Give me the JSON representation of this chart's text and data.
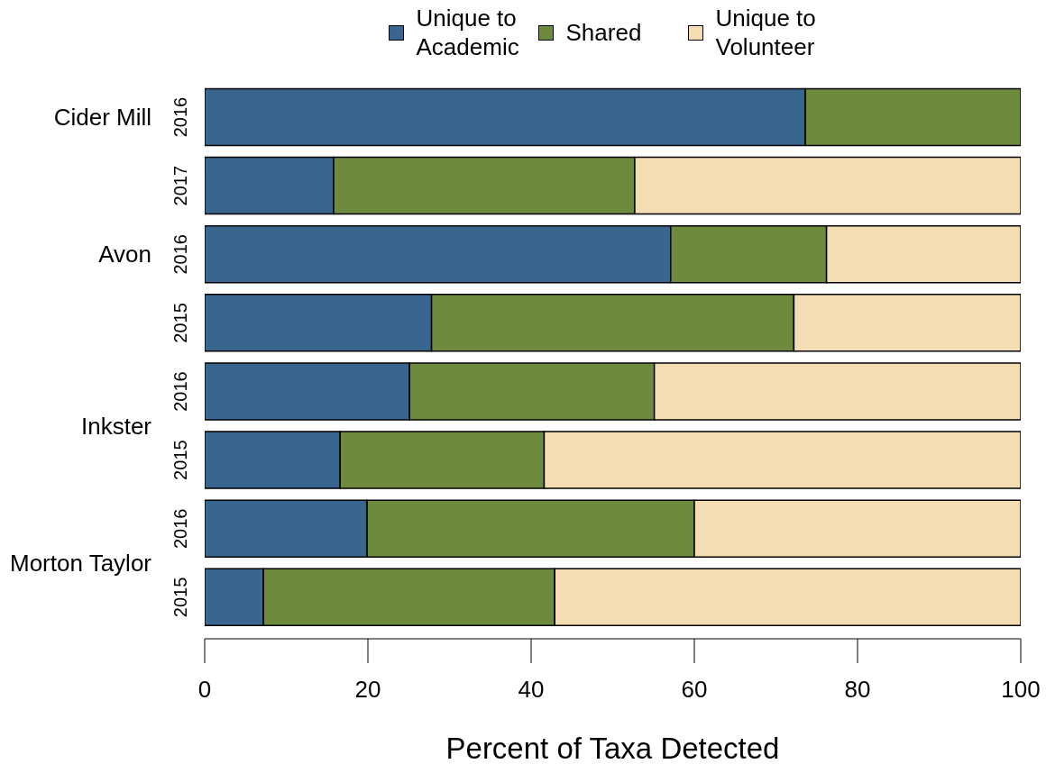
{
  "chart_data": {
    "type": "bar",
    "orientation": "horizontal",
    "stacked": true,
    "xlabel": "Percent of Taxa Detected",
    "categories": [
      "2016",
      "2017",
      "2016",
      "2015",
      "2016",
      "2015",
      "2016",
      "2015"
    ],
    "series": [
      {
        "name": "Unique to Academic",
        "color": "#38668f",
        "values": [
          73.6,
          15.8,
          57.1,
          27.8,
          25.1,
          16.6,
          19.9,
          7.2
        ]
      },
      {
        "name": "Shared",
        "color": "#6e8b3d",
        "values": [
          26.4,
          36.9,
          19.1,
          44.4,
          30.0,
          25.0,
          40.1,
          35.7
        ]
      },
      {
        "name": "Unique to Volunteer",
        "color": "#f4ddb2",
        "values": [
          0,
          47.3,
          23.8,
          27.8,
          44.9,
          58.4,
          40.0,
          57.1
        ]
      }
    ],
    "xlim": [
      0,
      100
    ],
    "xticks": [
      0,
      20,
      40,
      60,
      80,
      100
    ],
    "legend": "top",
    "annotations": [
      "Cider Mill",
      "Avon",
      "Inkster",
      "Morton Taylor"
    ]
  }
}
